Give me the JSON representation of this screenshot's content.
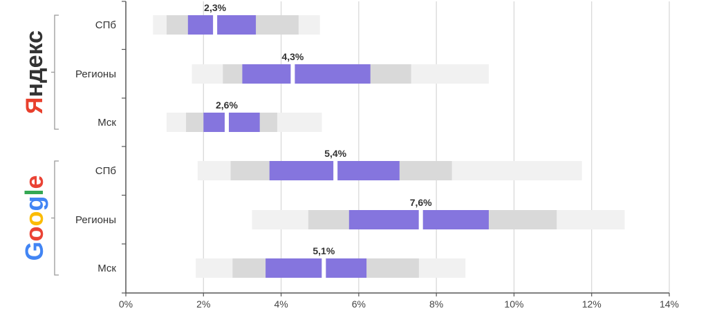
{
  "chart_data": {
    "type": "bar",
    "orientation": "horizontal",
    "chart_style": "box-range",
    "xlim": [
      0,
      14
    ],
    "x_ticks": [
      0,
      2,
      4,
      6,
      8,
      10,
      12,
      14
    ],
    "x_tick_labels": [
      "0%",
      "2%",
      "4%",
      "6%",
      "8%",
      "10%",
      "12%",
      "14%"
    ],
    "grid": "vertical",
    "colors": {
      "outer_range": "#f1f1f1",
      "mid_range": "#d9d9d9",
      "inner_range": "#8575de",
      "gridline": "#d6d6d6",
      "axis": "#555555"
    },
    "groups": [
      {
        "name": "Яндекс",
        "logo_colors": [
          "#e8402d",
          "#333333"
        ],
        "rows": [
          {
            "category": "СПб",
            "outer": [
              0.7,
              5.0
            ],
            "mid": [
              1.05,
              4.45
            ],
            "inner": [
              1.6,
              3.35
            ],
            "median": 2.3,
            "label": "2,3%"
          },
          {
            "category": "Регионы",
            "outer": [
              1.7,
              9.35
            ],
            "mid": [
              2.5,
              7.35
            ],
            "inner": [
              3.0,
              6.3
            ],
            "median": 4.3,
            "label": "4,3%"
          },
          {
            "category": "Мск",
            "outer": [
              1.05,
              5.05
            ],
            "mid": [
              1.55,
              3.9
            ],
            "inner": [
              2.0,
              3.45
            ],
            "median": 2.6,
            "label": "2,6%"
          }
        ]
      },
      {
        "name": "Google",
        "logo_colors": [
          "#4285f4",
          "#ea4335",
          "#fbbc05",
          "#4285f4",
          "#34a853",
          "#ea4335"
        ],
        "rows": [
          {
            "category": "СПб",
            "outer": [
              1.85,
              11.75
            ],
            "mid": [
              2.7,
              8.4
            ],
            "inner": [
              3.7,
              7.05
            ],
            "median": 5.4,
            "label": "5,4%"
          },
          {
            "category": "Регионы",
            "outer": [
              3.25,
              12.85
            ],
            "mid": [
              4.7,
              11.1
            ],
            "inner": [
              5.75,
              9.35
            ],
            "median": 7.6,
            "label": "7,6%"
          },
          {
            "category": "Мск",
            "outer": [
              1.8,
              8.75
            ],
            "mid": [
              2.75,
              7.55
            ],
            "inner": [
              3.6,
              6.2
            ],
            "median": 5.1,
            "label": "5,1%"
          }
        ]
      }
    ]
  }
}
